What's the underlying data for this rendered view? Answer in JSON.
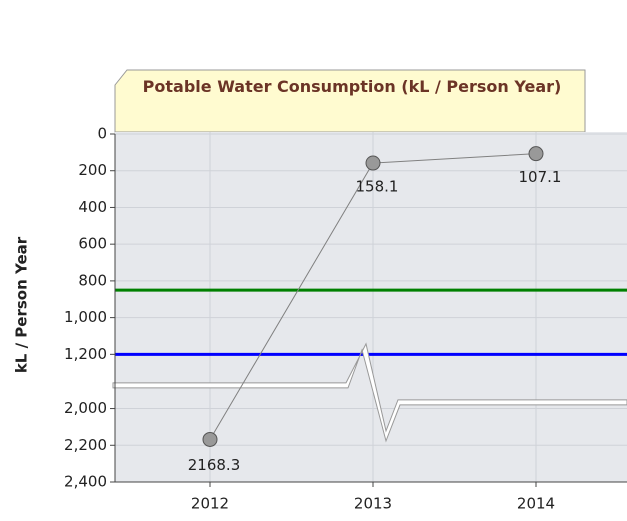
{
  "chart_data": {
    "type": "line",
    "title": "Potable Water Consumption (kL / Person Year)",
    "y_label": "kL / Person Year",
    "categories": [
      "2012",
      "2013",
      "2014"
    ],
    "series": [
      {
        "name": null,
        "color": "#808080",
        "values": [
          2168.3,
          158.1,
          107.1
        ]
      }
    ],
    "ylim": [
      0,
      2400
    ],
    "y_inverted": true,
    "axis_break": [
      1350,
      1980
    ],
    "yticks": [
      0,
      200,
      400,
      600,
      800,
      {
        "value": 1000,
        "label": "1,000"
      },
      {
        "value": 1200,
        "label": "1,200"
      },
      {
        "value": 2000,
        "label": "2,000"
      },
      {
        "value": 2200,
        "label": "2,200"
      },
      {
        "value": 2400,
        "label": "2,400"
      }
    ],
    "reference_lines": [
      {
        "value": 850,
        "color": "#008000"
      },
      {
        "value": 1200,
        "color": "#0000ff"
      }
    ],
    "grid": true
  }
}
